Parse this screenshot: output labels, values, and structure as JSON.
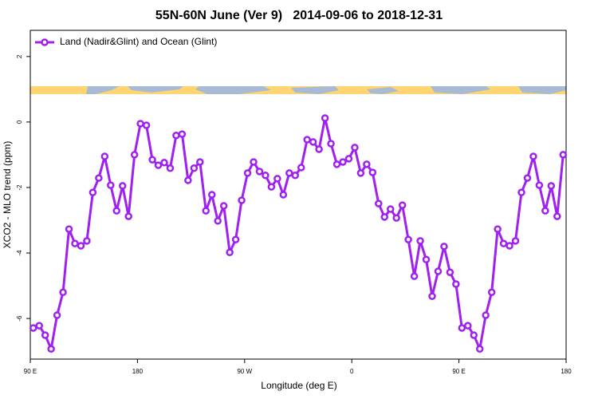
{
  "chart_data": {
    "type": "line",
    "title": "55N-60N June (Ver 9)   2014-09-06 to 2018-12-31",
    "x_label": "Longitude (deg E)",
    "y_label": "XCO2 - MLO trend (ppm)",
    "legend": "top-left",
    "xlim": [
      90,
      540
    ],
    "ylim": [
      -7.24,
      2.8
    ],
    "xticks": [
      {
        "value": 90,
        "label": "90 E"
      },
      180,
      {
        "value": 270,
        "label": "90 W"
      },
      {
        "value": 360,
        "label": "0"
      },
      {
        "value": 450,
        "label": "90 E"
      },
      {
        "value": 540,
        "label": "180"
      }
    ],
    "yticks": [
      -6,
      -4,
      -2,
      0,
      2
    ],
    "x": [
      92.5,
      97.5,
      102.5,
      107.5,
      112.5,
      117.5,
      122.5,
      127.5,
      132.5,
      137.5,
      142.5,
      147.5,
      152.5,
      157.5,
      162.5,
      167.5,
      172.5,
      177.5,
      182.5,
      187.5,
      192.5,
      197.5,
      202.5,
      207.5,
      212.5,
      217.5,
      222.5,
      227.5,
      232.5,
      237.5,
      242.5,
      247.5,
      252.5,
      257.5,
      262.5,
      267.5,
      272.5,
      277.5,
      282.5,
      287.5,
      292.5,
      297.5,
      302.5,
      307.5,
      312.5,
      317.5,
      322.5,
      327.5,
      332.5,
      337.5,
      342.5,
      347.5,
      352.5,
      357.5,
      362.5,
      367.5,
      372.5,
      377.5,
      382.5,
      387.5,
      392.5,
      397.5,
      402.5,
      407.5,
      412.5,
      417.5,
      422.5,
      427.5,
      432.5,
      437.5,
      442.5,
      447.5,
      452.5,
      457.5,
      462.5,
      467.5,
      472.5,
      477.5,
      482.5,
      487.5,
      492.5,
      497.5,
      502.5,
      507.5,
      512.5,
      517.5,
      522.5,
      527.5,
      532.5,
      537.5
    ],
    "series": [
      {
        "name": "Land (Nadir&Glint) and Ocean (Glint)",
        "color": "#a020f0",
        "values": [
          -6.29,
          -6.22,
          -6.51,
          -6.93,
          -5.9,
          -5.2,
          -3.27,
          -3.71,
          -3.78,
          -3.63,
          -2.15,
          -1.71,
          -1.05,
          -1.93,
          -2.71,
          -1.95,
          -2.88,
          -1.0,
          -0.05,
          -0.1,
          -1.15,
          -1.32,
          -1.24,
          -1.41,
          -0.41,
          -0.37,
          -1.78,
          -1.41,
          -1.22,
          -2.71,
          -2.22,
          -3.02,
          -2.56,
          -3.98,
          -3.59,
          -2.39,
          -1.56,
          -1.22,
          -1.51,
          -1.63,
          -1.98,
          -1.73,
          -2.22,
          -1.56,
          -1.63,
          -1.39,
          -0.54,
          -0.61,
          -0.83,
          0.12,
          -0.66,
          -1.29,
          -1.22,
          -1.12,
          -0.78,
          -1.56,
          -1.29,
          -1.54,
          -2.49,
          -2.9,
          -2.66,
          -2.93,
          -2.54,
          -3.59,
          -4.71,
          -3.63,
          -4.2,
          -5.32,
          -4.56,
          -3.8,
          -4.59,
          -4.95,
          -6.29,
          -6.22,
          -6.51,
          -6.93,
          -5.9,
          -5.2,
          -3.27,
          -3.71,
          -3.78,
          -3.63,
          -2.15,
          -1.71,
          -1.05,
          -1.93,
          -2.71,
          -1.95,
          -2.88,
          -1.0
        ]
      }
    ]
  }
}
